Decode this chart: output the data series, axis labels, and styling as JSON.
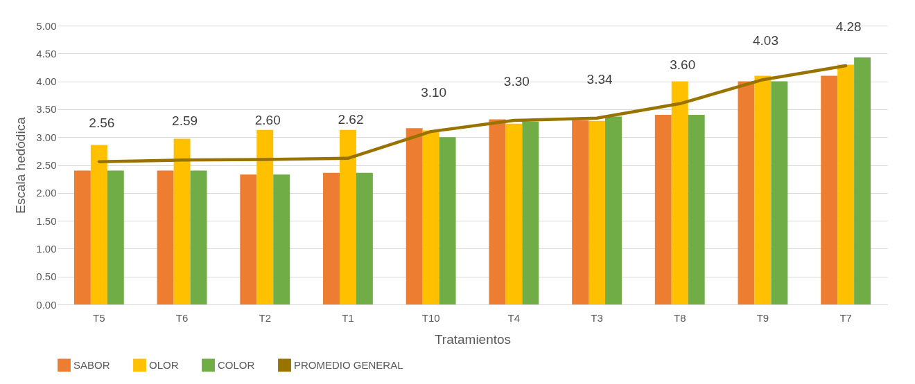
{
  "chart_data": {
    "type": "bar",
    "xlabel": "Tratamientos",
    "ylabel": "Escala hedódica",
    "categories": [
      "T5",
      "T6",
      "T2",
      "T1",
      "T10",
      "T4",
      "T3",
      "T8",
      "T9",
      "T7"
    ],
    "series": [
      {
        "name": "SABOR",
        "color": "#ed7d31",
        "values": [
          2.4,
          2.4,
          2.33,
          2.36,
          3.16,
          3.32,
          3.3,
          3.4,
          4.0,
          4.1
        ]
      },
      {
        "name": "OLOR",
        "color": "#ffc000",
        "values": [
          2.86,
          2.97,
          3.13,
          3.13,
          3.12,
          3.24,
          3.29,
          4.0,
          4.1,
          4.3
        ]
      },
      {
        "name": "COLOR",
        "color": "#70ad47",
        "values": [
          2.4,
          2.4,
          2.33,
          2.36,
          3.0,
          3.28,
          3.37,
          3.4,
          4.0,
          4.43
        ]
      },
      {
        "name": "PROMEDIO GENERAL",
        "type": "line",
        "color": "#997300",
        "values": [
          2.56,
          2.59,
          2.6,
          2.62,
          3.1,
          3.3,
          3.34,
          3.6,
          4.03,
          4.28
        ],
        "value_labels": [
          "2.56",
          "2.59",
          "2.60",
          "2.62",
          "3.10",
          "3.30",
          "3.34",
          "3.60",
          "4.03",
          "4.28"
        ]
      }
    ],
    "ylim": [
      0,
      5
    ],
    "yticks": [
      {
        "value": 0,
        "label": "0.00"
      },
      {
        "value": 0.5,
        "label": "0.50"
      },
      {
        "value": 1,
        "label": "1.00"
      },
      {
        "value": 1.5,
        "label": "1.50"
      },
      {
        "value": 2,
        "label": "2.00"
      },
      {
        "value": 2.5,
        "label": "2.50"
      },
      {
        "value": 3,
        "label": "3.00"
      },
      {
        "value": 3.5,
        "label": "3.50"
      },
      {
        "value": 4,
        "label": "4.00"
      },
      {
        "value": 4.5,
        "label": "4.50"
      },
      {
        "value": 5,
        "label": "5.00"
      }
    ],
    "grid": "y",
    "legend": "bottom"
  }
}
